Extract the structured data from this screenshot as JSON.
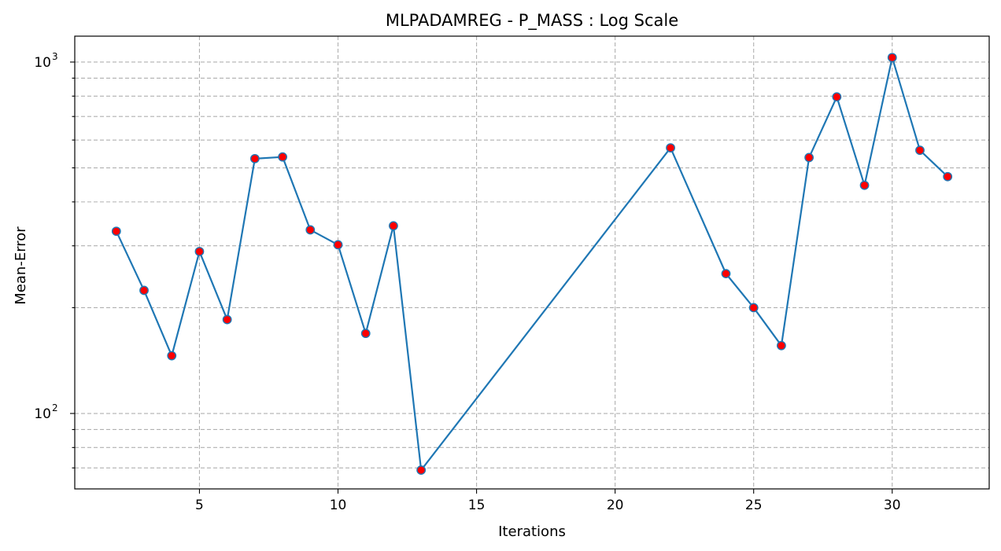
{
  "chart_data": {
    "type": "line",
    "title": "MLPADAMREG - P_MASS : Log Scale",
    "xlabel": "Iterations",
    "ylabel": "Mean-Error",
    "yscale": "log",
    "grid": true,
    "xlim": [
      0.5,
      33.5
    ],
    "ylim": [
      61,
      1185
    ],
    "x_ticks": [
      5,
      10,
      15,
      20,
      25,
      30
    ],
    "y_major_ticks": [
      {
        "value": 100,
        "base": "10",
        "exp": "2"
      },
      {
        "value": 1000,
        "base": "10",
        "exp": "3"
      }
    ],
    "y_minor_ticks": [
      70,
      80,
      90,
      200,
      300,
      400,
      500,
      600,
      700,
      800,
      900
    ],
    "series": [
      {
        "name": "",
        "line_color": "#1f77b4",
        "marker_face": "#ff0000",
        "marker_edge": "#1f77b4",
        "x": [
          2,
          3,
          4,
          5,
          6,
          7,
          8,
          9,
          10,
          11,
          12,
          13,
          22,
          24,
          25,
          26,
          27,
          28,
          29,
          30,
          31,
          32
        ],
        "y": [
          330,
          224,
          146,
          289,
          185,
          531,
          537,
          333,
          302,
          169,
          342,
          69,
          570,
          250,
          200,
          156,
          535,
          796,
          446,
          1030,
          561,
          472
        ]
      }
    ]
  }
}
